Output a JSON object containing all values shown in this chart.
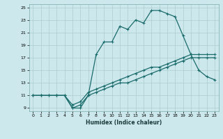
{
  "xlabel": "Humidex (Indice chaleur)",
  "bg_color": "#cce8ec",
  "grid_color": "#aacccc",
  "line_color": "#1a6b6b",
  "xlim": [
    -0.5,
    23.5
  ],
  "ylim": [
    8.5,
    25.5
  ],
  "xticks": [
    0,
    1,
    2,
    3,
    4,
    5,
    6,
    7,
    8,
    9,
    10,
    11,
    12,
    13,
    14,
    15,
    16,
    17,
    18,
    19,
    20,
    21,
    22,
    23
  ],
  "yticks": [
    9,
    11,
    13,
    15,
    17,
    19,
    21,
    23,
    25
  ],
  "line1_x": [
    0,
    1,
    2,
    3,
    4,
    5,
    6,
    7,
    8,
    9,
    10,
    11,
    12,
    13,
    14,
    15,
    16,
    17,
    18,
    19,
    20,
    21,
    22,
    23
  ],
  "line1_y": [
    11,
    11,
    11,
    11,
    11,
    9,
    9.5,
    11,
    11.5,
    12,
    12.5,
    13,
    13,
    13.5,
    14,
    14.5,
    15,
    15.5,
    16,
    16.5,
    17,
    17,
    17,
    17
  ],
  "line2_x": [
    0,
    1,
    2,
    3,
    4,
    5,
    6,
    7,
    8,
    9,
    10,
    11,
    12,
    13,
    14,
    15,
    16,
    17,
    18,
    19,
    20,
    21,
    22,
    23
  ],
  "line2_y": [
    11,
    11,
    11,
    11,
    11,
    9.5,
    10,
    11.5,
    12,
    12.5,
    13,
    13.5,
    14,
    14.5,
    15,
    15.5,
    15.5,
    16,
    16.5,
    17,
    17.5,
    17.5,
    17.5,
    17.5
  ],
  "line3_x": [
    0,
    1,
    3,
    4,
    5,
    6,
    7,
    8,
    9,
    10,
    11,
    12,
    13,
    14,
    15,
    16,
    17,
    18,
    19,
    20,
    21,
    22,
    23
  ],
  "line3_y": [
    11,
    11,
    11,
    11,
    9,
    9,
    11,
    17.5,
    19.5,
    19.5,
    22,
    21.5,
    23,
    22.5,
    24.5,
    24.5,
    24,
    23.5,
    20.5,
    17.5,
    15,
    14,
    13.5
  ]
}
